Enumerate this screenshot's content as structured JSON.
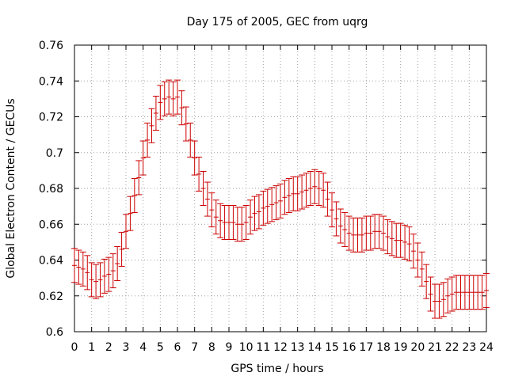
{
  "chart_data": {
    "type": "line",
    "title": "Day 175 of 2005, GEC from uqrg",
    "xlabel": "GPS time / hours",
    "ylabel": "Global Electron Content / GECUs",
    "xlim": [
      0,
      24
    ],
    "ylim": [
      0.6,
      0.76
    ],
    "xticks": [
      0,
      1,
      2,
      3,
      4,
      5,
      6,
      7,
      8,
      9,
      10,
      11,
      12,
      13,
      14,
      15,
      16,
      17,
      18,
      19,
      20,
      21,
      22,
      23,
      24
    ],
    "yticks": [
      0.6,
      0.62,
      0.64,
      0.66,
      0.68,
      0.7,
      0.72,
      0.74,
      0.76
    ],
    "ytick_labels": [
      "0.6",
      "0.62",
      "0.64",
      "0.66",
      "0.68",
      "0.7",
      "0.72",
      "0.74",
      "0.76"
    ],
    "grid": true,
    "series_color": "#cc0000",
    "series": [
      {
        "name": "GEC",
        "x": [
          0,
          0.25,
          0.5,
          0.75,
          1,
          1.25,
          1.5,
          1.75,
          2,
          2.25,
          2.5,
          2.75,
          3,
          3.25,
          3.5,
          3.75,
          4,
          4.25,
          4.5,
          4.75,
          5,
          5.25,
          5.5,
          5.75,
          6,
          6.25,
          6.5,
          6.75,
          7,
          7.25,
          7.5,
          7.75,
          8,
          8.25,
          8.5,
          8.75,
          9,
          9.25,
          9.5,
          9.75,
          10,
          10.25,
          10.5,
          10.75,
          11,
          11.25,
          11.5,
          11.75,
          12,
          12.25,
          12.5,
          12.75,
          13,
          13.25,
          13.5,
          13.75,
          14,
          14.25,
          14.5,
          14.75,
          15,
          15.25,
          15.5,
          15.75,
          16,
          16.25,
          16.5,
          16.75,
          17,
          17.25,
          17.5,
          17.75,
          18,
          18.25,
          18.5,
          18.75,
          19,
          19.25,
          19.5,
          19.75,
          20,
          20.25,
          20.5,
          20.75,
          21,
          21.25,
          21.5,
          21.75,
          22,
          22.25,
          22.5,
          22.75,
          23,
          23.25,
          23.5,
          23.75,
          24
        ],
        "y": [
          0.637,
          0.636,
          0.635,
          0.633,
          0.629,
          0.628,
          0.629,
          0.631,
          0.632,
          0.634,
          0.638,
          0.646,
          0.656,
          0.666,
          0.676,
          0.686,
          0.697,
          0.707,
          0.715,
          0.722,
          0.728,
          0.73,
          0.731,
          0.73,
          0.731,
          0.725,
          0.716,
          0.707,
          0.697,
          0.688,
          0.68,
          0.674,
          0.668,
          0.664,
          0.662,
          0.661,
          0.661,
          0.661,
          0.66,
          0.66,
          0.661,
          0.664,
          0.666,
          0.667,
          0.669,
          0.67,
          0.671,
          0.672,
          0.673,
          0.675,
          0.676,
          0.677,
          0.677,
          0.678,
          0.679,
          0.68,
          0.681,
          0.68,
          0.679,
          0.674,
          0.668,
          0.663,
          0.659,
          0.657,
          0.655,
          0.654,
          0.654,
          0.654,
          0.655,
          0.655,
          0.656,
          0.656,
          0.655,
          0.653,
          0.652,
          0.651,
          0.651,
          0.65,
          0.649,
          0.645,
          0.64,
          0.635,
          0.628,
          0.621,
          0.617,
          0.617,
          0.618,
          0.62,
          0.621,
          0.622,
          0.622,
          0.622,
          0.622,
          0.622,
          0.622,
          0.622,
          0.623
        ],
        "error": 0.0095
      }
    ]
  }
}
